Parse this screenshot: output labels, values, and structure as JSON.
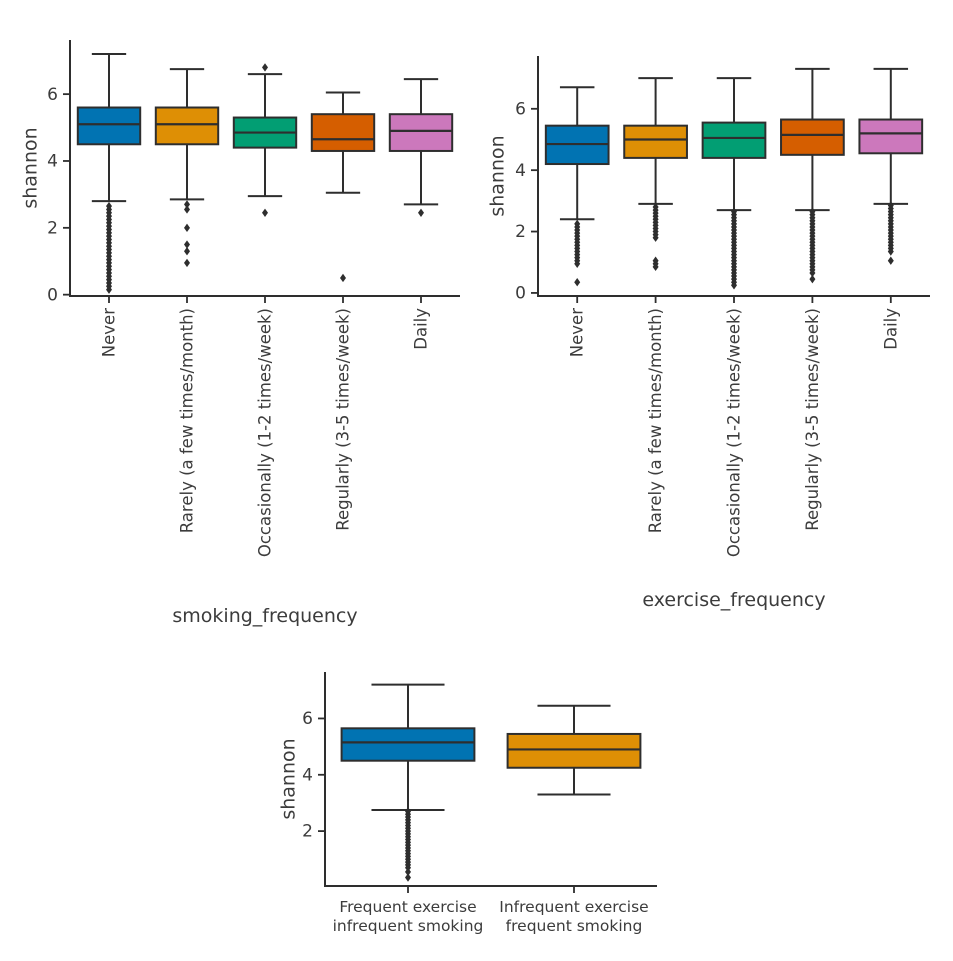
{
  "figure": {
    "background": "#ffffff",
    "description": "Three box plots of Shannon diversity versus smoking frequency, exercise frequency, and combined exercise/smoking groups"
  },
  "palette": {
    "blue": "#0173B2",
    "gold": "#DE8F05",
    "green": "#029E73",
    "orange": "#D55E00",
    "pink": "#CC78BC",
    "line": "#2e2e2e",
    "text": "#3c3c3c"
  },
  "chart_data": [
    {
      "type": "box",
      "title": "",
      "xlabel": "smoking_frequency",
      "ylabel": "shannon",
      "ylim": [
        -0.04,
        7.62
      ],
      "yticks": [
        0,
        2,
        4,
        6
      ],
      "grid": false,
      "legend": null,
      "xtick_rotation": 90,
      "categories": [
        "Never",
        "Rarely (a few times/month)",
        "Occasionally (1-2 times/week)",
        "Regularly (3-5 times/week)",
        "Daily"
      ],
      "boxes": [
        {
          "category": "Never",
          "color": "#0173B2",
          "whisker_low": 2.8,
          "q1": 4.5,
          "median": 5.1,
          "q3": 5.6,
          "whisker_high": 7.2,
          "outliers": [
            2.65,
            2.55,
            2.45,
            2.35,
            2.25,
            2.15,
            2.05,
            1.95,
            1.85,
            1.75,
            1.65,
            1.55,
            1.45,
            1.35,
            1.25,
            1.15,
            1.05,
            0.95,
            0.85,
            0.75,
            0.65,
            0.55,
            0.45,
            0.35,
            0.25,
            0.15
          ]
        },
        {
          "category": "Rarely (a few times/month)",
          "color": "#DE8F05",
          "whisker_low": 2.85,
          "q1": 4.5,
          "median": 5.1,
          "q3": 5.6,
          "whisker_high": 6.75,
          "outliers": [
            2.7,
            2.55,
            2.0,
            1.5,
            1.3,
            0.95
          ]
        },
        {
          "category": "Occasionally (1-2 times/week)",
          "color": "#029E73",
          "whisker_low": 2.95,
          "q1": 4.4,
          "median": 4.85,
          "q3": 5.3,
          "whisker_high": 6.6,
          "outliers": [
            6.8,
            2.45
          ]
        },
        {
          "category": "Regularly (3-5 times/week)",
          "color": "#D55E00",
          "whisker_low": 3.05,
          "q1": 4.3,
          "median": 4.65,
          "q3": 5.4,
          "whisker_high": 6.05,
          "outliers": [
            0.5
          ]
        },
        {
          "category": "Daily",
          "color": "#CC78BC",
          "whisker_low": 2.7,
          "q1": 4.3,
          "median": 4.9,
          "q3": 5.4,
          "whisker_high": 6.45,
          "outliers": [
            2.45
          ]
        }
      ]
    },
    {
      "type": "box",
      "title": "",
      "xlabel": "exercise_frequency",
      "ylabel": "shannon",
      "ylim": [
        -0.1,
        7.72
      ],
      "yticks": [
        0,
        2,
        4,
        6
      ],
      "grid": false,
      "legend": null,
      "xtick_rotation": 90,
      "categories": [
        "Never",
        "Rarely (a few times/month)",
        "Occasionally (1-2 times/week)",
        "Regularly (3-5 times/week)",
        "Daily"
      ],
      "boxes": [
        {
          "category": "Never",
          "color": "#0173B2",
          "whisker_low": 2.4,
          "q1": 4.2,
          "median": 4.85,
          "q3": 5.45,
          "whisker_high": 6.7,
          "outliers": [
            2.25,
            2.15,
            2.05,
            1.95,
            1.85,
            1.75,
            1.65,
            1.55,
            1.45,
            1.35,
            1.25,
            1.15,
            1.05,
            0.95,
            0.35
          ]
        },
        {
          "category": "Rarely (a few times/month)",
          "color": "#DE8F05",
          "whisker_low": 2.9,
          "q1": 4.4,
          "median": 5.0,
          "q3": 5.45,
          "whisker_high": 7.0,
          "outliers": [
            2.8,
            2.7,
            2.6,
            2.5,
            2.4,
            2.3,
            2.2,
            2.1,
            2.0,
            1.9,
            1.8,
            1.05,
            0.95,
            0.85
          ]
        },
        {
          "category": "Occasionally (1-2 times/week)",
          "color": "#029E73",
          "whisker_low": 2.7,
          "q1": 4.4,
          "median": 5.05,
          "q3": 5.55,
          "whisker_high": 7.0,
          "outliers": [
            2.65,
            2.55,
            2.45,
            2.35,
            2.25,
            2.15,
            2.05,
            1.95,
            1.85,
            1.75,
            1.65,
            1.55,
            1.45,
            1.35,
            1.25,
            1.15,
            1.05,
            0.95,
            0.85,
            0.75,
            0.65,
            0.55,
            0.45,
            0.35,
            0.25
          ]
        },
        {
          "category": "Regularly (3-5 times/week)",
          "color": "#D55E00",
          "whisker_low": 2.7,
          "q1": 4.5,
          "median": 5.15,
          "q3": 5.65,
          "whisker_high": 7.3,
          "outliers": [
            2.65,
            2.55,
            2.45,
            2.35,
            2.25,
            2.15,
            2.05,
            1.95,
            1.85,
            1.75,
            1.65,
            1.55,
            1.45,
            1.35,
            1.25,
            1.15,
            1.05,
            0.95,
            0.85,
            0.75,
            0.65,
            0.45
          ]
        },
        {
          "category": "Daily",
          "color": "#CC78BC",
          "whisker_low": 2.9,
          "q1": 4.55,
          "median": 5.2,
          "q3": 5.65,
          "whisker_high": 7.3,
          "outliers": [
            2.85,
            2.75,
            2.65,
            2.55,
            2.45,
            2.35,
            2.25,
            2.15,
            2.05,
            1.95,
            1.85,
            1.75,
            1.65,
            1.55,
            1.45,
            1.35,
            1.05
          ]
        }
      ]
    },
    {
      "type": "box",
      "title": "",
      "xlabel": "",
      "ylabel": "shannon",
      "ylim": [
        0.05,
        7.65
      ],
      "yticks": [
        2,
        4,
        6
      ],
      "grid": false,
      "legend": null,
      "xtick_rotation": 0,
      "categories": [
        "Frequent exercise\ninfrequent smoking",
        "Infrequent exercise\nfrequent smoking"
      ],
      "boxes": [
        {
          "category": "Frequent exercise\ninfrequent smoking",
          "color": "#0173B2",
          "whisker_low": 2.75,
          "q1": 4.5,
          "median": 5.15,
          "q3": 5.65,
          "whisker_high": 7.2,
          "outliers": [
            2.7,
            2.6,
            2.5,
            2.4,
            2.3,
            2.2,
            2.1,
            2.0,
            1.9,
            1.8,
            1.7,
            1.6,
            1.5,
            1.4,
            1.3,
            1.2,
            1.1,
            1.0,
            0.9,
            0.8,
            0.7,
            0.55,
            0.35
          ]
        },
        {
          "category": "Infrequent exercise\nfrequent smoking",
          "color": "#DE8F05",
          "whisker_low": 3.3,
          "q1": 4.25,
          "median": 4.9,
          "q3": 5.45,
          "whisker_high": 6.45,
          "outliers": []
        }
      ]
    }
  ]
}
